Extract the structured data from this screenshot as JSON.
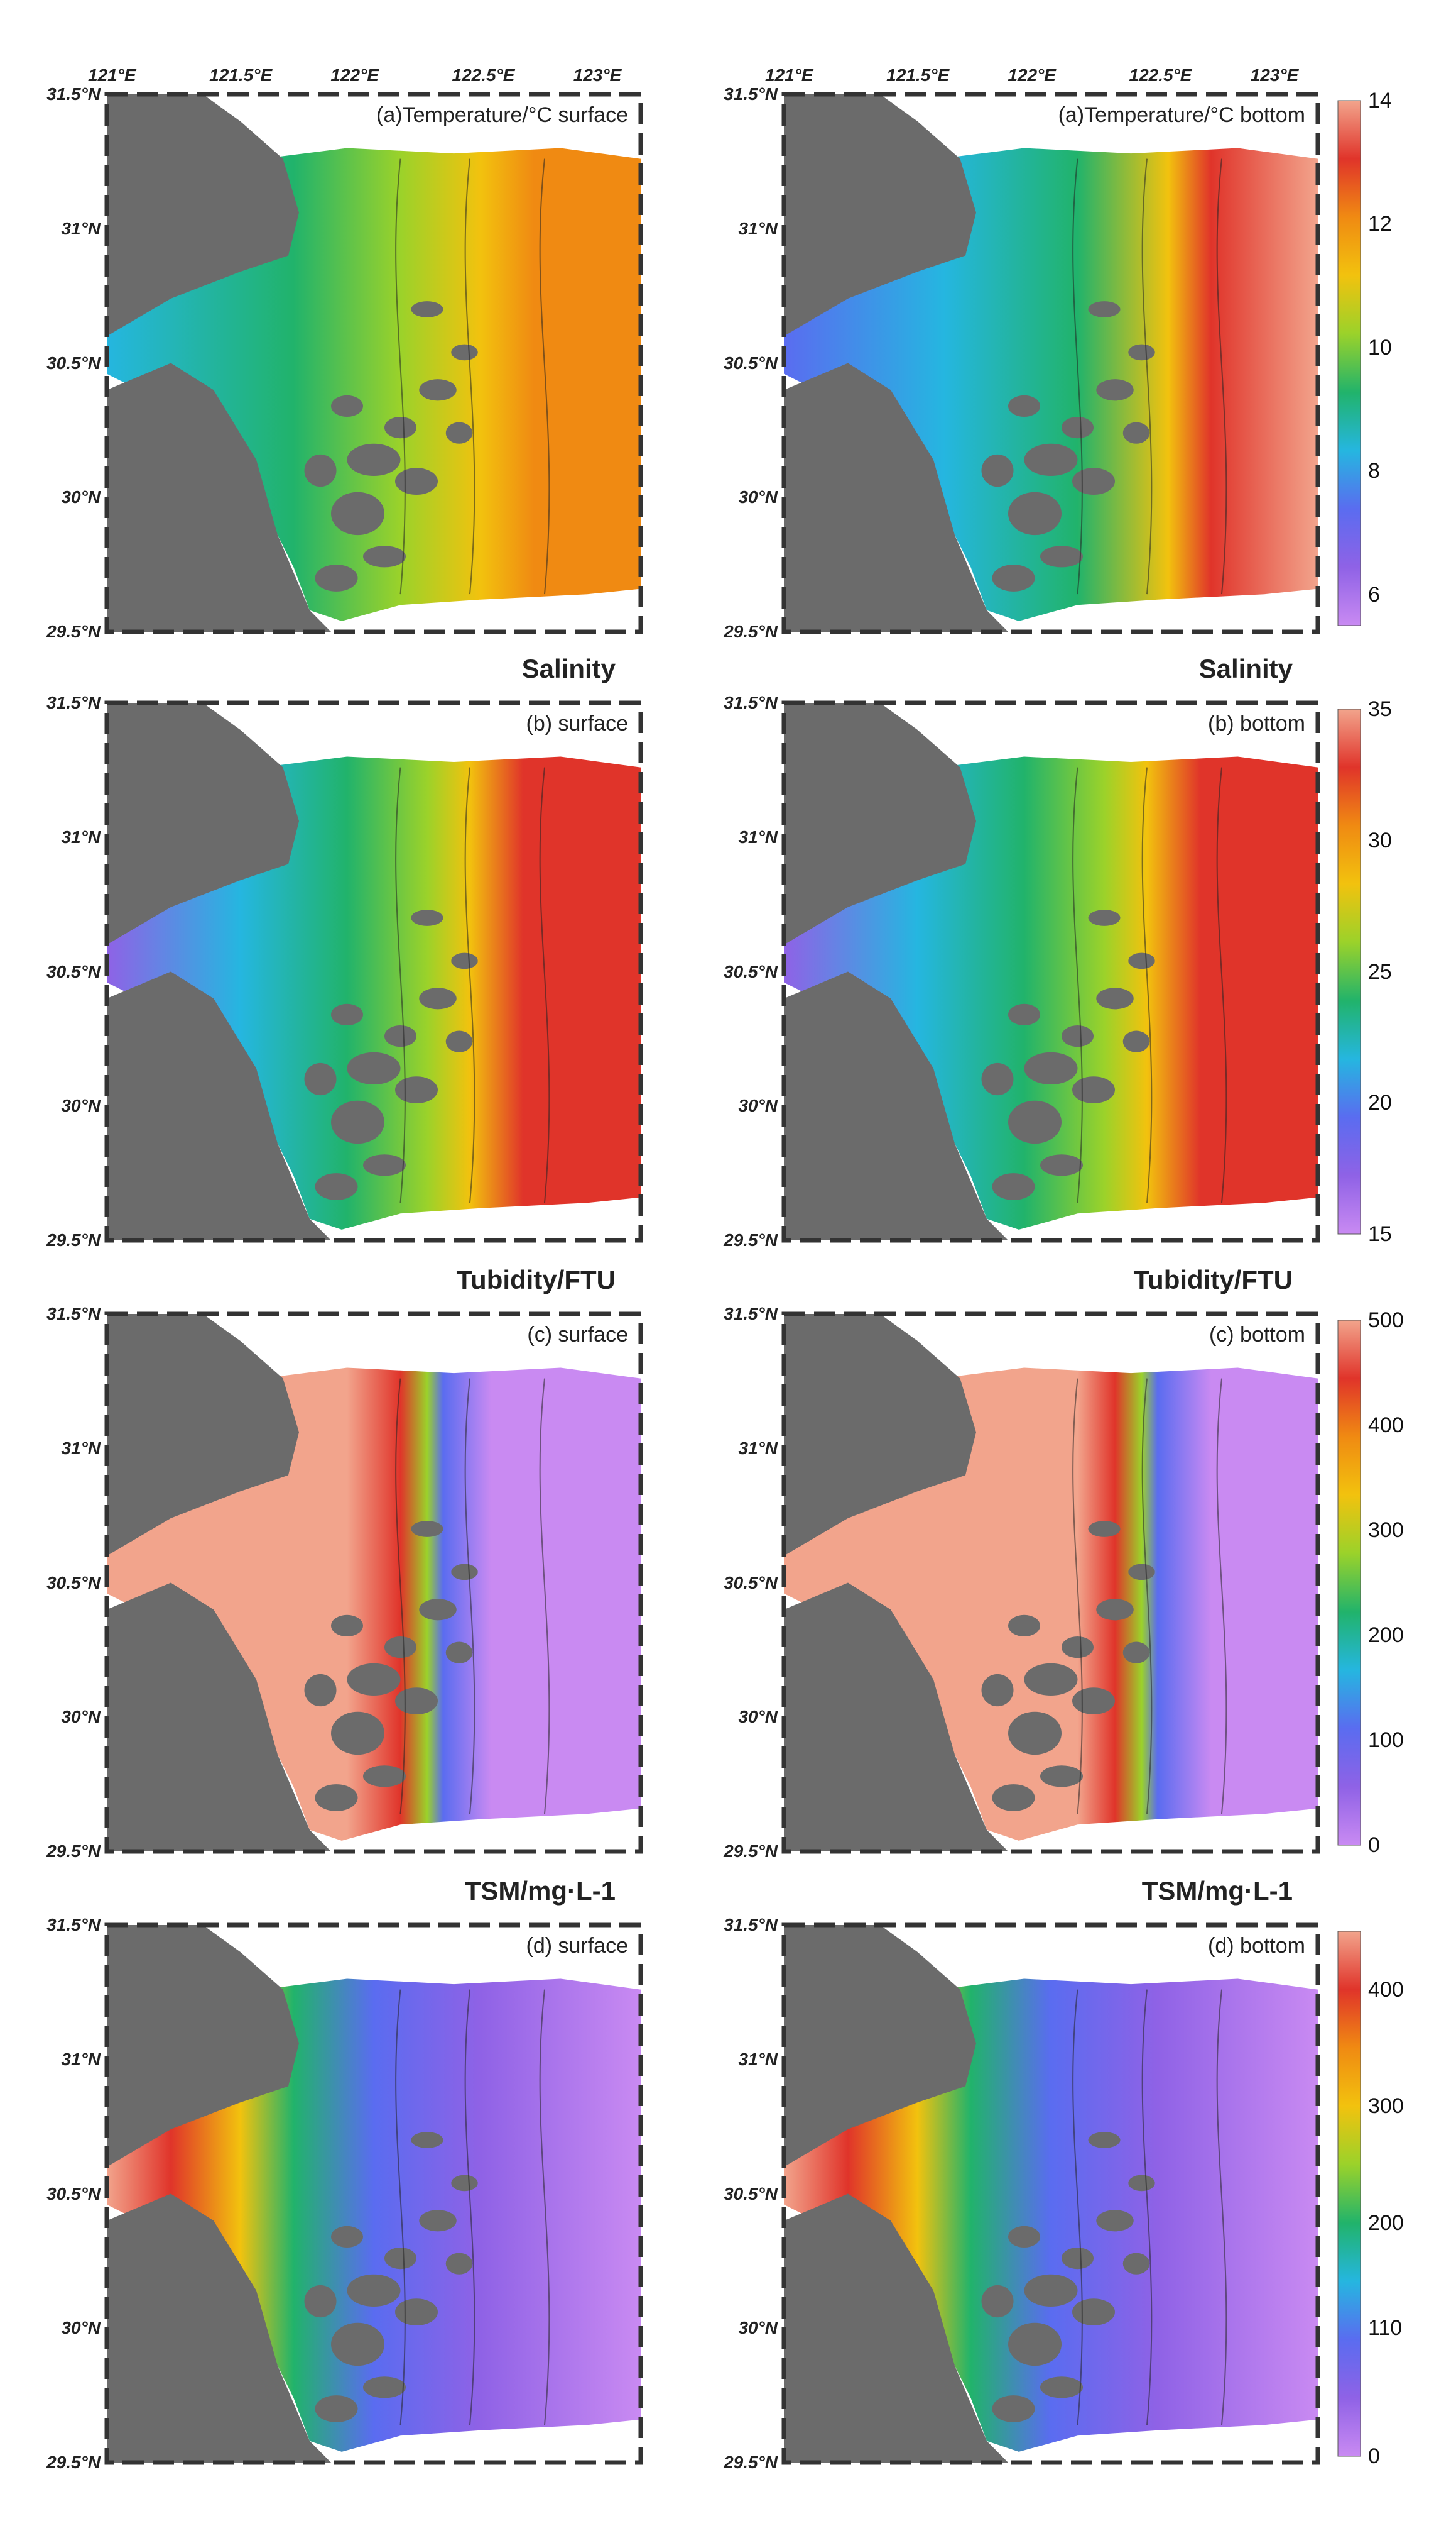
{
  "figure": {
    "rows": [
      {
        "title": "",
        "colorbar": {
          "ticks": [
            "14",
            "12",
            "10",
            "8",
            "6"
          ],
          "min": 5.5,
          "max": 14,
          "palette": "odv"
        },
        "panels": [
          {
            "tag": "(a)Temperature/°C surface"
          },
          {
            "tag": "(a)Temperature/°C bottom"
          }
        ]
      },
      {
        "title": "Salinity",
        "colorbar": {
          "ticks": [
            "35",
            "30",
            "25",
            "20",
            "15"
          ],
          "min": 15,
          "max": 35,
          "palette": "odv"
        },
        "panels": [
          {
            "tag": "(b) surface"
          },
          {
            "tag": "(b) bottom"
          }
        ]
      },
      {
        "title": "Tubidity/FTU",
        "colorbar": {
          "ticks": [
            "500",
            "400",
            "300",
            "200",
            "100",
            "0"
          ],
          "min": 0,
          "max": 500,
          "palette": "odv"
        },
        "panels": [
          {
            "tag": "(c) surface"
          },
          {
            "tag": "(c) bottom"
          }
        ]
      },
      {
        "title": "TSM/mg·L-1",
        "colorbar": {
          "ticks": [
            "400",
            "300",
            "200",
            "110",
            "0"
          ],
          "min": 0,
          "max": 450,
          "palette": "odv"
        },
        "panels": [
          {
            "tag": "(d) surface"
          },
          {
            "tag": "(d) bottom"
          }
        ]
      }
    ],
    "lon_labels": [
      "121°E",
      "121.5°E",
      "122°E",
      "122.5°E",
      "123°E"
    ],
    "lat_labels": [
      "31.5°N",
      "31°N",
      "30.5°N",
      "30°N",
      "29.5°N"
    ],
    "colors": {
      "land": "#6b6b6b",
      "frame": "#333333",
      "palette_stops": [
        "#c98af2",
        "#8f62e6",
        "#5a6cf0",
        "#25b6e0",
        "#21b36b",
        "#9bd22a",
        "#f2c20e",
        "#f08a12",
        "#e0342a",
        "#f2a48c"
      ]
    }
  }
}
